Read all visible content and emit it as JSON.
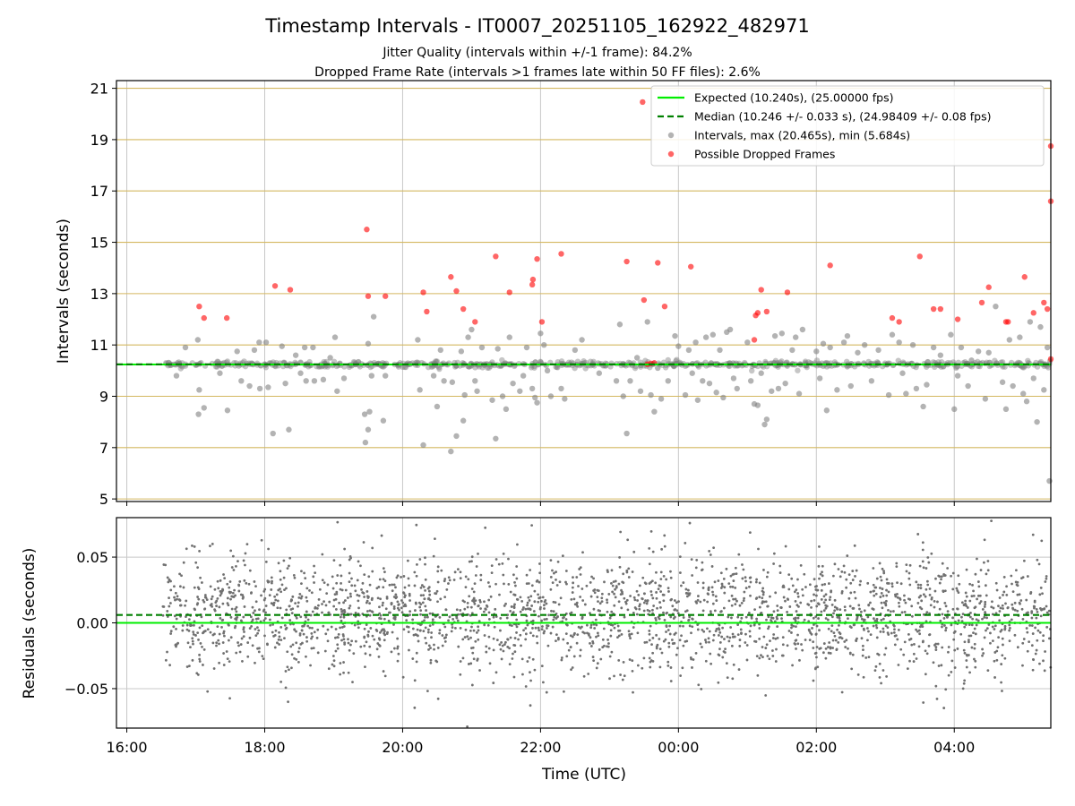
{
  "chart_data": [
    {
      "type": "scatter",
      "title": "Timestamp Intervals - IT0007_20251105_162922_482971",
      "subtitle_lines": [
        "Jitter Quality (intervals within +/-1 frame): 84.2%",
        "Dropped Frame Rate (intervals >1 frames late within 50 FF files): 2.6%"
      ],
      "xlabel": "",
      "ylabel": "Intervals (seconds)",
      "xlim_hours": [
        15.85,
        29.4
      ],
      "ylim": [
        4.9,
        21.3
      ],
      "y_ticks": [
        5,
        7,
        9,
        11,
        13,
        15,
        17,
        19,
        21
      ],
      "y_tick_labels": [
        "5",
        "7",
        "9",
        "11",
        "13",
        "15",
        "17",
        "19",
        "21"
      ],
      "horizontal_reference_lines": [
        5,
        7,
        9,
        11,
        13,
        15,
        17,
        19,
        21
      ],
      "expected_line": 10.24,
      "median_line": 10.246,
      "colors": {
        "expected": "#00ee00",
        "median": "#008000",
        "intervals": "#808080",
        "dropped": "#ff0000",
        "hline": "#d4b860",
        "grid": "#c8c8c8"
      },
      "legend_position": "top-right",
      "legend": [
        {
          "label": "Expected (10.240s), (25.00000 fps)",
          "style": "solid-line",
          "color": "#00ee00"
        },
        {
          "label": "Median (10.246 +/- 0.033 s), (24.98409 +/- 0.08 fps)",
          "style": "dashed-line",
          "color": "#008000"
        },
        {
          "label": "Intervals, max (20.465s), min (5.684s)",
          "style": "marker",
          "color": "#808080"
        },
        {
          "label": "Possible Dropped Frames",
          "style": "marker",
          "color": "#ff0000"
        }
      ],
      "series": [
        {
          "name": "Intervals",
          "points": [
            [
              16.72,
              9.8
            ],
            [
              16.85,
              10.9
            ],
            [
              17.03,
              11.2
            ],
            [
              17.05,
              9.25
            ],
            [
              17.04,
              8.3
            ],
            [
              17.12,
              8.55
            ],
            [
              17.35,
              9.9
            ],
            [
              17.46,
              8.45
            ],
            [
              17.6,
              10.75
            ],
            [
              17.66,
              9.6
            ],
            [
              17.78,
              9.4
            ],
            [
              17.85,
              10.8
            ],
            [
              17.92,
              11.1
            ],
            [
              17.93,
              9.3
            ],
            [
              18.02,
              11.1
            ],
            [
              18.05,
              9.35
            ],
            [
              18.12,
              7.55
            ],
            [
              18.25,
              10.95
            ],
            [
              18.3,
              9.5
            ],
            [
              18.35,
              7.7
            ],
            [
              18.45,
              10.6
            ],
            [
              18.52,
              9.9
            ],
            [
              18.58,
              10.9
            ],
            [
              18.6,
              9.6
            ],
            [
              18.7,
              10.9
            ],
            [
              18.72,
              9.6
            ],
            [
              18.85,
              9.65
            ],
            [
              18.95,
              10.5
            ],
            [
              19.02,
              11.3
            ],
            [
              19.05,
              9.2
            ],
            [
              19.15,
              9.7
            ],
            [
              19.45,
              8.3
            ],
            [
              19.46,
              7.2
            ],
            [
              19.5,
              7.7
            ],
            [
              19.52,
              8.4
            ],
            [
              19.5,
              11.05
            ],
            [
              19.55,
              9.8
            ],
            [
              19.58,
              12.1
            ],
            [
              19.72,
              8.05
            ],
            [
              19.75,
              9.8
            ],
            [
              20.22,
              11.2
            ],
            [
              20.25,
              9.25
            ],
            [
              20.3,
              7.1
            ],
            [
              20.45,
              9.8
            ],
            [
              20.5,
              8.6
            ],
            [
              20.55,
              10.8
            ],
            [
              20.6,
              9.6
            ],
            [
              20.7,
              6.85
            ],
            [
              20.72,
              9.55
            ],
            [
              20.78,
              7.45
            ],
            [
              20.85,
              10.75
            ],
            [
              20.88,
              8.05
            ],
            [
              20.9,
              9.05
            ],
            [
              20.95,
              11.3
            ],
            [
              21.0,
              11.6
            ],
            [
              21.05,
              9.6
            ],
            [
              21.08,
              9.2
            ],
            [
              21.15,
              10.9
            ],
            [
              21.3,
              8.85
            ],
            [
              21.35,
              7.35
            ],
            [
              21.38,
              10.85
            ],
            [
              21.45,
              9.0
            ],
            [
              21.5,
              8.5
            ],
            [
              21.55,
              11.3
            ],
            [
              21.6,
              9.5
            ],
            [
              21.7,
              9.2
            ],
            [
              21.75,
              9.8
            ],
            [
              21.8,
              10.9
            ],
            [
              21.88,
              9.3
            ],
            [
              21.92,
              8.95
            ],
            [
              21.95,
              8.75
            ],
            [
              22.0,
              11.45
            ],
            [
              22.05,
              11.0
            ],
            [
              22.1,
              10.0
            ],
            [
              22.15,
              9.0
            ],
            [
              22.3,
              9.3
            ],
            [
              22.35,
              8.9
            ],
            [
              22.5,
              10.8
            ],
            [
              22.6,
              11.2
            ],
            [
              22.85,
              9.9
            ],
            [
              23.1,
              9.6
            ],
            [
              23.15,
              11.8
            ],
            [
              23.2,
              9.0
            ],
            [
              23.25,
              7.55
            ],
            [
              23.3,
              9.6
            ],
            [
              23.4,
              10.5
            ],
            [
              23.45,
              9.2
            ],
            [
              23.55,
              11.9
            ],
            [
              23.6,
              9.05
            ],
            [
              23.65,
              8.4
            ],
            [
              23.7,
              10.1
            ],
            [
              23.75,
              8.9
            ],
            [
              23.85,
              9.6
            ],
            [
              23.95,
              11.35
            ],
            [
              24.0,
              10.95
            ],
            [
              24.1,
              9.05
            ],
            [
              24.15,
              10.8
            ],
            [
              24.2,
              9.9
            ],
            [
              24.25,
              11.1
            ],
            [
              24.28,
              8.85
            ],
            [
              24.35,
              9.6
            ],
            [
              24.4,
              11.3
            ],
            [
              24.45,
              9.5
            ],
            [
              24.5,
              11.4
            ],
            [
              24.55,
              9.15
            ],
            [
              24.6,
              10.8
            ],
            [
              24.65,
              8.95
            ],
            [
              24.7,
              11.5
            ],
            [
              24.75,
              11.6
            ],
            [
              24.8,
              9.7
            ],
            [
              24.85,
              9.3
            ],
            [
              25.0,
              11.1
            ],
            [
              25.05,
              9.6
            ],
            [
              25.1,
              8.7
            ],
            [
              25.15,
              8.65
            ],
            [
              25.2,
              9.9
            ],
            [
              25.25,
              7.9
            ],
            [
              25.28,
              8.1
            ],
            [
              25.35,
              9.2
            ],
            [
              25.4,
              11.35
            ],
            [
              25.45,
              9.3
            ],
            [
              25.5,
              11.45
            ],
            [
              25.55,
              9.5
            ],
            [
              25.65,
              10.8
            ],
            [
              25.7,
              11.3
            ],
            [
              25.75,
              9.1
            ],
            [
              25.8,
              11.6
            ],
            [
              26.0,
              10.75
            ],
            [
              26.05,
              9.7
            ],
            [
              26.1,
              11.05
            ],
            [
              26.15,
              8.45
            ],
            [
              26.2,
              10.9
            ],
            [
              26.3,
              9.25
            ],
            [
              26.4,
              11.1
            ],
            [
              26.45,
              11.35
            ],
            [
              26.5,
              9.4
            ],
            [
              26.6,
              10.7
            ],
            [
              26.7,
              11.0
            ],
            [
              26.8,
              9.6
            ],
            [
              26.9,
              10.8
            ],
            [
              27.05,
              9.05
            ],
            [
              27.1,
              11.4
            ],
            [
              27.2,
              11.1
            ],
            [
              27.25,
              9.9
            ],
            [
              27.3,
              9.1
            ],
            [
              27.4,
              11.0
            ],
            [
              27.45,
              9.3
            ],
            [
              27.55,
              8.6
            ],
            [
              27.6,
              9.45
            ],
            [
              27.7,
              10.9
            ],
            [
              27.8,
              10.6
            ],
            [
              27.95,
              11.4
            ],
            [
              28.0,
              8.5
            ],
            [
              28.05,
              9.8
            ],
            [
              28.1,
              10.9
            ],
            [
              28.2,
              9.4
            ],
            [
              28.25,
              10.4
            ],
            [
              28.35,
              10.75
            ],
            [
              28.45,
              8.9
            ],
            [
              28.5,
              10.7
            ],
            [
              28.6,
              12.5
            ],
            [
              28.7,
              9.55
            ],
            [
              28.75,
              8.5
            ],
            [
              28.8,
              11.2
            ],
            [
              28.85,
              9.4
            ],
            [
              28.95,
              11.3
            ],
            [
              29.0,
              9.1
            ],
            [
              29.05,
              8.8
            ],
            [
              29.1,
              11.9
            ],
            [
              29.15,
              9.7
            ],
            [
              29.2,
              8.0
            ],
            [
              29.25,
              11.7
            ],
            [
              29.3,
              9.25
            ],
            [
              29.38,
              5.7
            ],
            [
              29.35,
              10.9
            ]
          ]
        },
        {
          "name": "Possible Dropped Frames",
          "points": [
            [
              17.05,
              12.5
            ],
            [
              17.12,
              12.05
            ],
            [
              17.45,
              12.05
            ],
            [
              18.15,
              13.3
            ],
            [
              18.37,
              13.15
            ],
            [
              19.48,
              15.5
            ],
            [
              19.5,
              12.9
            ],
            [
              19.75,
              12.9
            ],
            [
              20.3,
              13.05
            ],
            [
              20.35,
              12.3
            ],
            [
              20.7,
              13.65
            ],
            [
              20.78,
              13.1
            ],
            [
              20.88,
              12.4
            ],
            [
              21.05,
              11.9
            ],
            [
              21.35,
              14.45
            ],
            [
              21.55,
              13.05
            ],
            [
              21.88,
              13.35
            ],
            [
              21.89,
              13.55
            ],
            [
              21.95,
              14.35
            ],
            [
              22.02,
              11.9
            ],
            [
              22.3,
              14.55
            ],
            [
              23.25,
              14.25
            ],
            [
              23.48,
              20.465
            ],
            [
              23.5,
              12.75
            ],
            [
              23.55,
              10.25
            ],
            [
              23.6,
              10.28
            ],
            [
              23.65,
              10.3
            ],
            [
              23.7,
              14.2
            ],
            [
              23.8,
              12.5
            ],
            [
              24.18,
              14.05
            ],
            [
              25.1,
              11.2
            ],
            [
              25.12,
              12.15
            ],
            [
              25.15,
              12.25
            ],
            [
              25.2,
              13.15
            ],
            [
              25.28,
              12.3
            ],
            [
              25.58,
              13.05
            ],
            [
              26.2,
              14.1
            ],
            [
              27.1,
              12.05
            ],
            [
              27.2,
              11.9
            ],
            [
              27.5,
              14.45
            ],
            [
              27.7,
              12.4
            ],
            [
              27.8,
              12.4
            ],
            [
              28.05,
              12.0
            ],
            [
              28.4,
              12.65
            ],
            [
              28.5,
              13.25
            ],
            [
              28.75,
              11.9
            ],
            [
              28.78,
              11.9
            ],
            [
              29.02,
              13.65
            ],
            [
              29.15,
              12.25
            ],
            [
              29.3,
              12.65
            ],
            [
              29.35,
              12.4
            ],
            [
              29.4,
              18.75
            ],
            [
              29.4,
              16.6
            ],
            [
              29.4,
              10.45
            ]
          ]
        }
      ]
    },
    {
      "type": "scatter",
      "title": "",
      "xlabel": "Time (UTC)",
      "ylabel": "Residuals (seconds)",
      "xlim_hours": [
        15.85,
        29.4
      ],
      "ylim": [
        -0.08,
        0.08
      ],
      "x_ticks_hours": [
        16,
        18,
        20,
        22,
        24,
        26,
        28
      ],
      "x_tick_labels": [
        "16:00",
        "18:00",
        "20:00",
        "22:00",
        "00:00",
        "02:00",
        "04:00"
      ],
      "y_ticks": [
        -0.05,
        0.0,
        0.05
      ],
      "y_tick_labels": [
        "−0.05",
        "0.00",
        "0.05"
      ],
      "expected_line": 0.0,
      "median_line": 0.006,
      "residual_series": {
        "name": "Residuals",
        "color": "#707070",
        "x_start_hours": 16.52,
        "x_end_hours": 29.4,
        "point_count": 2600,
        "center": 0.006,
        "typical_spread": 0.022
      }
    }
  ]
}
